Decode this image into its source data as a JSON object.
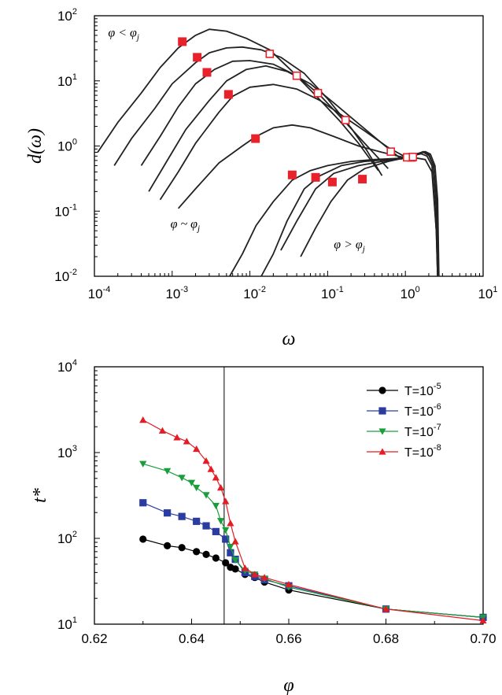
{
  "chart_data": [
    {
      "type": "line",
      "xlabel": "ω",
      "ylabel": "d(ω)",
      "xscale": "log",
      "yscale": "log",
      "xlim": [
        0.0001,
        10
      ],
      "ylim": [
        0.01,
        100
      ],
      "x_ticks": [
        {
          "base": "10",
          "exp": "-4"
        },
        {
          "base": "10",
          "exp": "-3"
        },
        {
          "base": "10",
          "exp": "-2"
        },
        {
          "base": "10",
          "exp": "-1"
        },
        {
          "base": "10",
          "exp": "0"
        },
        {
          "base": "10",
          "exp": "1"
        }
      ],
      "y_ticks": [
        {
          "base": "10",
          "exp": "-2"
        },
        {
          "base": "10",
          "exp": "-1"
        },
        {
          "base": "10",
          "exp": "0"
        },
        {
          "base": "10",
          "exp": "1"
        },
        {
          "base": "10",
          "exp": "2"
        }
      ],
      "annotations": [
        {
          "main": "φ < φ",
          "sub": "j",
          "at": [
            0.00015,
            48
          ]
        },
        {
          "main": "φ ~ φ",
          "sub": "j",
          "at": [
            0.00095,
            0.055
          ]
        },
        {
          "main": "φ > φ",
          "sub": "j",
          "at": [
            0.12,
            0.027
          ]
        }
      ],
      "series": [
        {
          "points": [
            [
              0.00011,
              0.8
            ],
            [
              0.0002,
              2.3
            ],
            [
              0.0004,
              6.5
            ],
            [
              0.0007,
              16
            ],
            [
              0.0012,
              32
            ],
            [
              0.002,
              50
            ],
            [
              0.003,
              62
            ],
            [
              0.005,
              58
            ],
            [
              0.009,
              45
            ],
            [
              0.018,
              30
            ],
            [
              0.035,
              14
            ],
            [
              0.07,
              6
            ],
            [
              0.14,
              2.5
            ],
            [
              0.25,
              1.1
            ],
            [
              0.45,
              0.42
            ]
          ]
        },
        {
          "points": [
            [
              0.00018,
              0.5
            ],
            [
              0.0003,
              1.3
            ],
            [
              0.0006,
              3.8
            ],
            [
              0.001,
              9
            ],
            [
              0.002,
              19
            ],
            [
              0.003,
              27
            ],
            [
              0.005,
              32
            ],
            [
              0.008,
              33
            ],
            [
              0.014,
              30
            ],
            [
              0.025,
              23
            ],
            [
              0.05,
              13
            ],
            [
              0.1,
              5.3
            ],
            [
              0.2,
              1.9
            ],
            [
              0.32,
              0.85
            ],
            [
              0.5,
              0.35
            ]
          ]
        },
        {
          "points": [
            [
              0.0004,
              0.5
            ],
            [
              0.0007,
              1.4
            ],
            [
              0.0012,
              4
            ],
            [
              0.002,
              9
            ],
            [
              0.0035,
              15
            ],
            [
              0.006,
              20
            ],
            [
              0.01,
              20.5
            ],
            [
              0.02,
              18
            ],
            [
              0.04,
              12
            ],
            [
              0.08,
              6
            ],
            [
              0.15,
              2.7
            ],
            [
              0.3,
              1.1
            ],
            [
              0.6,
              0.45
            ]
          ]
        },
        {
          "points": [
            [
              0.0005,
              0.2
            ],
            [
              0.0009,
              0.65
            ],
            [
              0.0015,
              1.8
            ],
            [
              0.003,
              5
            ],
            [
              0.005,
              10
            ],
            [
              0.009,
              15
            ],
            [
              0.016,
              17
            ],
            [
              0.03,
              14
            ],
            [
              0.06,
              9
            ],
            [
              0.12,
              4.6
            ],
            [
              0.25,
              2.2
            ],
            [
              0.5,
              1.1
            ],
            [
              0.9,
              0.62
            ]
          ]
        },
        {
          "points": [
            [
              0.0007,
              0.15
            ],
            [
              0.0012,
              0.4
            ],
            [
              0.002,
              1.1
            ],
            [
              0.004,
              3.3
            ],
            [
              0.006,
              5.8
            ],
            [
              0.01,
              8
            ],
            [
              0.02,
              8.8
            ],
            [
              0.04,
              7.5
            ],
            [
              0.08,
              5
            ],
            [
              0.15,
              3
            ],
            [
              0.3,
              1.7
            ],
            [
              0.6,
              0.95
            ],
            [
              1.0,
              0.68
            ],
            [
              1.3,
              0.62
            ]
          ]
        },
        {
          "points": [
            [
              0.0012,
              0.11
            ],
            [
              0.002,
              0.22
            ],
            [
              0.004,
              0.55
            ],
            [
              0.008,
              1.0
            ],
            [
              0.012,
              1.4
            ],
            [
              0.02,
              1.9
            ],
            [
              0.035,
              2.1
            ],
            [
              0.06,
              1.9
            ],
            [
              0.12,
              1.4
            ],
            [
              0.25,
              1.0
            ],
            [
              0.5,
              0.8
            ],
            [
              0.9,
              0.68
            ],
            [
              1.3,
              0.66
            ],
            [
              1.8,
              0.62
            ],
            [
              2.2,
              0.4
            ],
            [
              2.5,
              0.05
            ],
            [
              2.6,
              0.01
            ]
          ]
        },
        {
          "points": [
            [
              0.0055,
              0.01
            ],
            [
              0.008,
              0.022
            ],
            [
              0.012,
              0.06
            ],
            [
              0.02,
              0.14
            ],
            [
              0.035,
              0.3
            ],
            [
              0.06,
              0.42
            ],
            [
              0.1,
              0.5
            ],
            [
              0.2,
              0.58
            ],
            [
              0.4,
              0.62
            ],
            [
              0.7,
              0.64
            ],
            [
              1.0,
              0.66
            ],
            [
              1.3,
              0.72
            ],
            [
              1.6,
              0.76
            ],
            [
              1.9,
              0.7
            ],
            [
              2.2,
              0.5
            ],
            [
              2.5,
              0.05
            ],
            [
              2.6,
              0.01
            ]
          ]
        },
        {
          "points": [
            [
              0.014,
              0.01
            ],
            [
              0.02,
              0.022
            ],
            [
              0.03,
              0.07
            ],
            [
              0.05,
              0.22
            ],
            [
              0.08,
              0.35
            ],
            [
              0.15,
              0.5
            ],
            [
              0.3,
              0.58
            ],
            [
              0.6,
              0.62
            ],
            [
              1.0,
              0.65
            ],
            [
              1.4,
              0.74
            ],
            [
              1.7,
              0.8
            ],
            [
              2.0,
              0.72
            ],
            [
              2.3,
              0.5
            ],
            [
              2.5,
              0.1
            ],
            [
              2.6,
              0.01
            ]
          ]
        },
        {
          "points": [
            [
              0.025,
              0.025
            ],
            [
              0.04,
              0.07
            ],
            [
              0.07,
              0.22
            ],
            [
              0.12,
              0.38
            ],
            [
              0.25,
              0.5
            ],
            [
              0.5,
              0.58
            ],
            [
              0.9,
              0.64
            ],
            [
              1.4,
              0.75
            ],
            [
              1.7,
              0.82
            ],
            [
              2.0,
              0.75
            ],
            [
              2.3,
              0.5
            ],
            [
              2.55,
              0.12
            ],
            [
              2.65,
              0.01
            ]
          ]
        },
        {
          "points": [
            [
              0.045,
              0.02
            ],
            [
              0.07,
              0.055
            ],
            [
              0.11,
              0.14
            ],
            [
              0.18,
              0.3
            ],
            [
              0.3,
              0.45
            ],
            [
              0.6,
              0.58
            ],
            [
              1.0,
              0.66
            ],
            [
              1.4,
              0.76
            ],
            [
              1.8,
              0.82
            ],
            [
              2.1,
              0.75
            ],
            [
              2.4,
              0.5
            ],
            [
              2.6,
              0.15
            ],
            [
              2.7,
              0.01
            ]
          ]
        }
      ],
      "filled_markers": [
        [
          0.00135,
          40
        ],
        [
          0.0021,
          23
        ],
        [
          0.0028,
          13.5
        ],
        [
          0.0053,
          6.2
        ],
        [
          0.0118,
          1.3
        ],
        [
          0.035,
          0.36
        ],
        [
          0.07,
          0.33
        ],
        [
          0.115,
          0.28
        ],
        [
          0.28,
          0.31
        ],
        [
          1.2,
          0.67
        ]
      ],
      "open_markers": [
        [
          0.018,
          26
        ],
        [
          0.04,
          12
        ],
        [
          0.075,
          6.5
        ],
        [
          0.17,
          2.5
        ],
        [
          0.65,
          0.82
        ],
        [
          1.05,
          0.67
        ],
        [
          1.25,
          0.68
        ]
      ]
    },
    {
      "type": "line",
      "xlabel": "φ",
      "ylabel": "t*",
      "yscale": "log",
      "xlim": [
        0.62,
        0.7
      ],
      "ylim": [
        10,
        10000
      ],
      "x_ticks": [
        "0.62",
        "0.64",
        "0.66",
        "0.68",
        "0.70"
      ],
      "y_ticks": [
        {
          "base": "10",
          "exp": "1"
        },
        {
          "base": "10",
          "exp": "2"
        },
        {
          "base": "10",
          "exp": "3"
        },
        {
          "base": "10",
          "exp": "4"
        }
      ],
      "vline_x": 0.6467,
      "legend_position": "top-right",
      "series": [
        {
          "name": "T=10",
          "name_exp": "-5",
          "color": "#000000",
          "marker": "circle",
          "x": [
            0.63,
            0.635,
            0.638,
            0.641,
            0.643,
            0.645,
            0.647,
            0.648,
            0.649,
            0.651,
            0.653,
            0.655,
            0.66,
            0.68,
            0.7
          ],
          "y": [
            98,
            82,
            78,
            70,
            65,
            59,
            52,
            46,
            44,
            38,
            35,
            31,
            25,
            15,
            12
          ]
        },
        {
          "name": "T=10",
          "name_exp": "-6",
          "color": "#2b3ca0",
          "marker": "square",
          "x": [
            0.63,
            0.635,
            0.638,
            0.641,
            0.643,
            0.645,
            0.647,
            0.648,
            0.649,
            0.651,
            0.653,
            0.655,
            0.66,
            0.68,
            0.7
          ],
          "y": [
            260,
            198,
            180,
            158,
            140,
            120,
            98,
            68,
            57,
            40,
            36,
            33,
            28,
            15,
            12
          ]
        },
        {
          "name": "T=10",
          "name_exp": "-7",
          "color": "#1a9e3c",
          "marker": "triangle-down",
          "x": [
            0.63,
            0.635,
            0.638,
            0.64,
            0.641,
            0.643,
            0.645,
            0.646,
            0.647,
            0.648,
            0.649,
            0.651,
            0.653,
            0.655,
            0.66,
            0.68,
            0.7
          ],
          "y": [
            740,
            610,
            510,
            445,
            390,
            320,
            240,
            160,
            125,
            80,
            56,
            42,
            38,
            34,
            27,
            15,
            12
          ]
        },
        {
          "name": "T=10",
          "name_exp": "-8",
          "color": "#e31c25",
          "marker": "triangle-up",
          "x": [
            0.63,
            0.634,
            0.637,
            0.639,
            0.641,
            0.643,
            0.644,
            0.645,
            0.646,
            0.647,
            0.648,
            0.649,
            0.651,
            0.653,
            0.655,
            0.66,
            0.68,
            0.7
          ],
          "y": [
            2400,
            1800,
            1500,
            1350,
            1100,
            800,
            640,
            510,
            390,
            270,
            150,
            92,
            45,
            38,
            35,
            29,
            15,
            11
          ]
        }
      ]
    }
  ]
}
